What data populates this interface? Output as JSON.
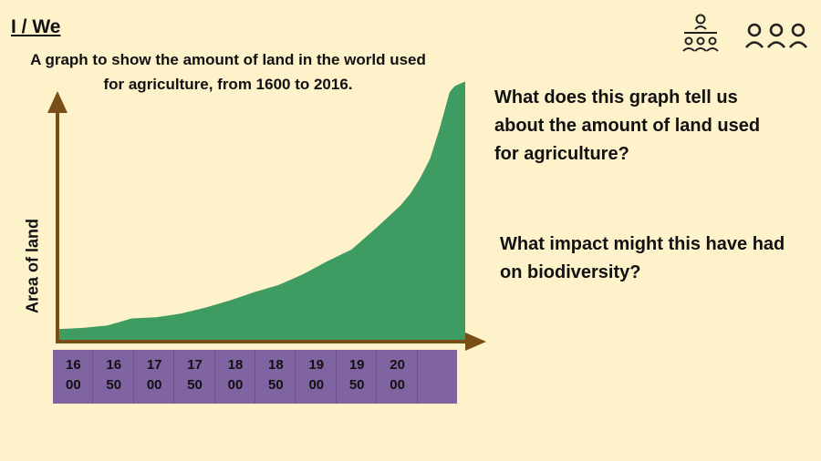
{
  "heading": "I / We",
  "questions": [
    "What does this graph tell us about the amount of land used for agriculture?",
    "What impact might this have had on biodiversity?"
  ],
  "icons": [
    "teacher-with-class-icon",
    "group-of-three-people-icon"
  ],
  "colors": {
    "background": "#fdf2c9",
    "area": "#3e9c62",
    "axis": "#7a4e17",
    "tick_band": "#8064a2"
  },
  "chart_data": {
    "type": "area",
    "title": "A graph to show the amount of land in the world used for agriculture, from 1600 to 2016.",
    "ylabel": "Area of land",
    "xlabel": "",
    "tick_labels": [
      [
        "16",
        "00"
      ],
      [
        "16",
        "50"
      ],
      [
        "17",
        "00"
      ],
      [
        "17",
        "50"
      ],
      [
        "18",
        "00"
      ],
      [
        "18",
        "50"
      ],
      [
        "19",
        "00"
      ],
      [
        "19",
        "50"
      ],
      [
        "20",
        "00"
      ],
      [
        "",
        ""
      ]
    ],
    "x": [
      1600,
      1625,
      1650,
      1675,
      1700,
      1725,
      1750,
      1775,
      1800,
      1825,
      1850,
      1875,
      1900,
      1925,
      1950,
      1960,
      1970,
      1980,
      1990,
      2000,
      2005,
      2010,
      2016
    ],
    "y": [
      0.09,
      0.1,
      0.12,
      0.18,
      0.19,
      0.22,
      0.27,
      0.33,
      0.4,
      0.46,
      0.55,
      0.66,
      0.76,
      0.94,
      1.13,
      1.23,
      1.36,
      1.52,
      1.78,
      2.08,
      2.13,
      2.15,
      2.17
    ],
    "xlim": [
      1600,
      2016
    ],
    "ylim": [
      0,
      2.35
    ],
    "grid": false
  }
}
